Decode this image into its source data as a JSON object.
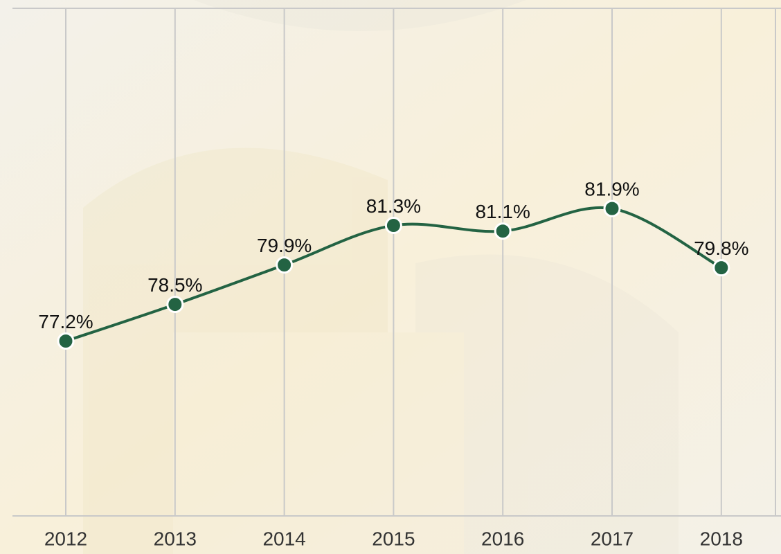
{
  "chart_data": {
    "type": "line",
    "categories": [
      "2012",
      "2013",
      "2014",
      "2015",
      "2016",
      "2017",
      "2018"
    ],
    "values": [
      77.2,
      78.5,
      79.9,
      81.3,
      81.1,
      81.9,
      79.8
    ],
    "value_labels": [
      "77.2%",
      "78.5%",
      "79.9%",
      "81.3%",
      "81.1%",
      "81.9%",
      "79.8%"
    ],
    "color": "#236343",
    "ylim": [
      71,
      89
    ],
    "grid": true,
    "smooth": true
  }
}
